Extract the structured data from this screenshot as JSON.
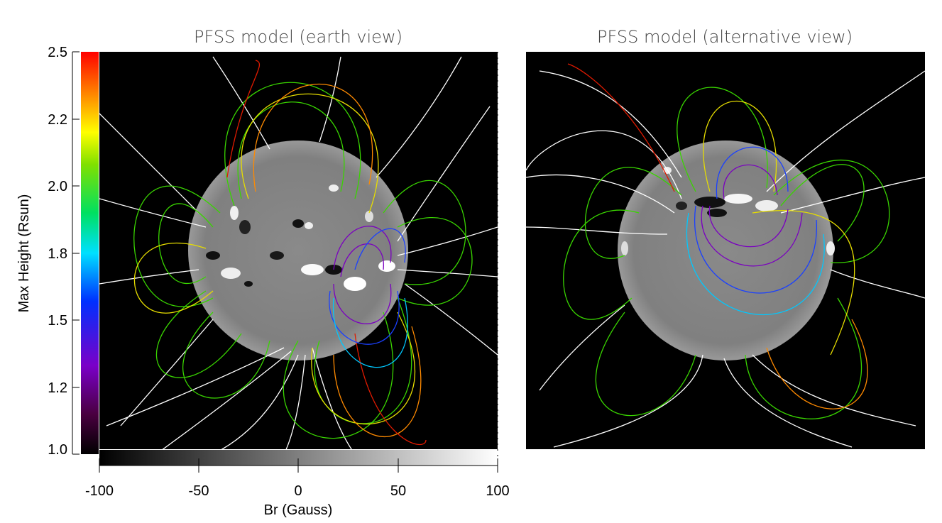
{
  "panels": [
    {
      "id": "earth",
      "title": "PFSS model (earth view)"
    },
    {
      "id": "alt",
      "title": "PFSS model (alternative view)"
    }
  ],
  "height_colorbar": {
    "label": "Max Height (Rsun)",
    "ticks": [
      "2.5",
      "2.2",
      "2.0",
      "1.8",
      "1.5",
      "1.2",
      "1.0"
    ]
  },
  "br_colorbar": {
    "label": "Br (Gauss)",
    "ticks": [
      "-100",
      "-50",
      "0",
      "50",
      "100"
    ]
  },
  "colors": {
    "line_open": "#ffffff",
    "line_green": "#39d400",
    "line_yellow": "#e6dd00",
    "line_orange": "#ff8a00",
    "line_red": "#e01a00",
    "line_blue": "#1a40ff",
    "line_purple": "#7a00c0",
    "background": "#000000"
  }
}
